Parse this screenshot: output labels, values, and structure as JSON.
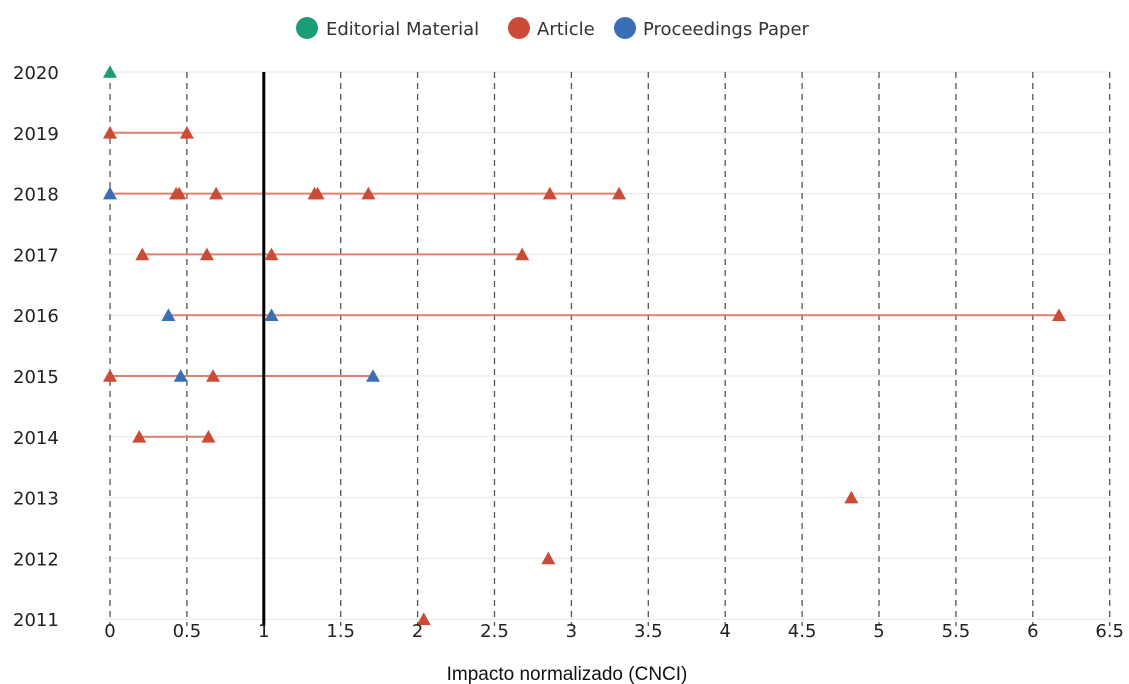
{
  "chart_data": {
    "type": "scatter",
    "title": "",
    "xlabel": "Impacto normalizado (CNCI)",
    "ylabel": "",
    "xlim": [
      0,
      6.5
    ],
    "xticks": [
      "0",
      "0.5",
      "1",
      "1.5",
      "2",
      "2.5",
      "3",
      "3.5",
      "4",
      "4.5",
      "5",
      "5.5",
      "6",
      "6.5"
    ],
    "years": [
      "2020",
      "2019",
      "2018",
      "2017",
      "2016",
      "2015",
      "2014",
      "2013",
      "2012",
      "2011"
    ],
    "reference_line": 1,
    "grid": "vertical dashed",
    "legend_position": "top-center",
    "series": [
      {
        "name": "Editorial Material",
        "color": "#1b9e77",
        "points": [
          {
            "y": "2020",
            "x": 0
          }
        ]
      },
      {
        "name": "Article",
        "color": "#cc4b37",
        "points": [
          {
            "y": "2019",
            "x": 0
          },
          {
            "y": "2019",
            "x": 0.5
          },
          {
            "y": "2018",
            "x": 0.43
          },
          {
            "y": "2018",
            "x": 0.45
          },
          {
            "y": "2018",
            "x": 0.69
          },
          {
            "y": "2018",
            "x": 1.33
          },
          {
            "y": "2018",
            "x": 1.35
          },
          {
            "y": "2018",
            "x": 1.68
          },
          {
            "y": "2018",
            "x": 2.86
          },
          {
            "y": "2018",
            "x": 3.31
          },
          {
            "y": "2017",
            "x": 0.21
          },
          {
            "y": "2017",
            "x": 0.63
          },
          {
            "y": "2017",
            "x": 1.05
          },
          {
            "y": "2017",
            "x": 2.68
          },
          {
            "y": "2016",
            "x": 6.17
          },
          {
            "y": "2015",
            "x": 0
          },
          {
            "y": "2015",
            "x": 0.67
          },
          {
            "y": "2014",
            "x": 0.19
          },
          {
            "y": "2014",
            "x": 0.64
          },
          {
            "y": "2013",
            "x": 4.82
          },
          {
            "y": "2012",
            "x": 2.85
          },
          {
            "y": "2011",
            "x": 2.04
          }
        ]
      },
      {
        "name": "Proceedings Paper",
        "color": "#3a6fb7",
        "points": [
          {
            "y": "2018",
            "x": 0
          },
          {
            "y": "2016",
            "x": 0.38
          },
          {
            "y": "2016",
            "x": 1.05
          },
          {
            "y": "2015",
            "x": 0.46
          },
          {
            "y": "2015",
            "x": 1.71
          }
        ]
      }
    ]
  }
}
